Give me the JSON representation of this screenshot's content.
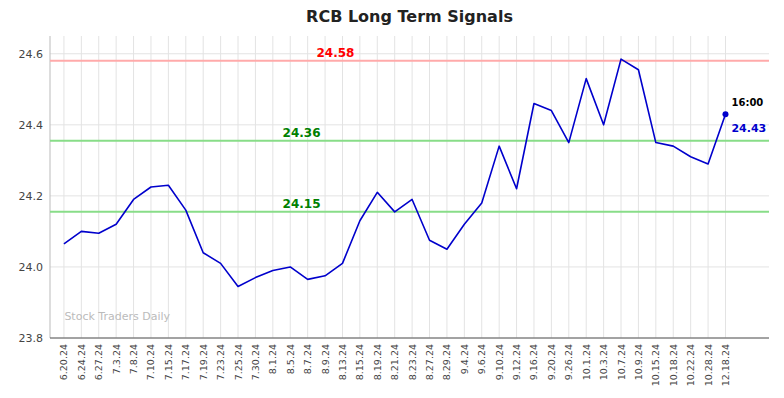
{
  "chart_data": {
    "type": "line",
    "title": "RCB Long Term Signals",
    "watermark": "Stock Traders Daily",
    "categories": [
      "6.20.24",
      "6.24.24",
      "6.27.24",
      "7.3.24",
      "7.8.24",
      "7.10.24",
      "7.15.24",
      "7.17.24",
      "7.19.24",
      "7.23.24",
      "7.25.24",
      "7.30.24",
      "8.1.24",
      "8.5.24",
      "8.7.24",
      "8.9.24",
      "8.13.24",
      "8.15.24",
      "8.19.24",
      "8.21.24",
      "8.23.24",
      "8.27.24",
      "8.29.24",
      "9.4.24",
      "9.6.24",
      "9.10.24",
      "9.12.24",
      "9.16.24",
      "9.20.24",
      "9.26.24",
      "10.1.24",
      "10.3.24",
      "10.7.24",
      "10.9.24",
      "10.15.24",
      "10.18.24",
      "10.22.24",
      "10.28.24",
      "12.18.24"
    ],
    "values": [
      24.065,
      24.1,
      24.095,
      24.12,
      24.19,
      24.225,
      24.23,
      24.16,
      24.04,
      24.01,
      23.945,
      23.97,
      23.99,
      24.0,
      23.965,
      23.975,
      24.01,
      24.13,
      24.21,
      24.155,
      24.19,
      24.075,
      24.05,
      24.12,
      24.18,
      24.34,
      24.22,
      24.46,
      24.44,
      24.35,
      24.53,
      24.4,
      24.585,
      24.555,
      24.35,
      24.34,
      24.31,
      24.29,
      24.43
    ],
    "color": "#0000cc",
    "ylim": [
      23.8,
      24.65
    ],
    "yticks": [
      23.8,
      {
        "value": 24.0,
        "label": "24.0"
      },
      24.2,
      24.4,
      24.6
    ],
    "grid": true,
    "hlines": [
      {
        "value": 24.58,
        "label": "24.58",
        "color": "#ffaaaa",
        "text_color": "red"
      },
      {
        "value": 24.155,
        "label": "24.15",
        "color": "#88dd88",
        "text_color": "green"
      },
      {
        "value": 24.355,
        "label": "24.36",
        "color": "#88dd88",
        "text_color": "green"
      }
    ],
    "annotations": [
      {
        "text": "16:00",
        "color": "#000000"
      },
      {
        "text": "24.43",
        "color": "#0000cc"
      }
    ]
  }
}
